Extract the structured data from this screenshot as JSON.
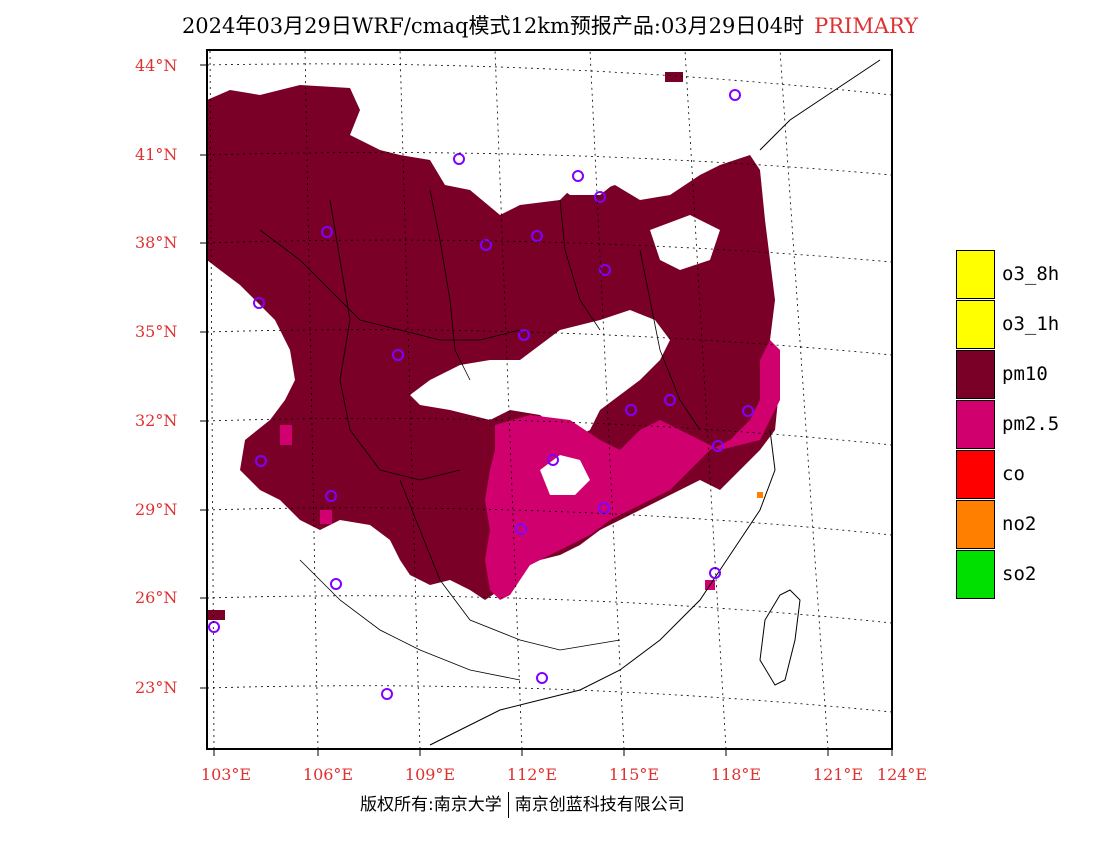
{
  "title": {
    "main": "2024年03月29日WRF/cmaq模式12km预报产品:03月29日04时",
    "tag": "PRIMARY",
    "tag_color": "#e03030"
  },
  "axes": {
    "lat_labels": [
      "44°N",
      "41°N",
      "38°N",
      "35°N",
      "32°N",
      "29°N",
      "26°N",
      "23°N"
    ],
    "lon_labels": [
      "103°E",
      "106°E",
      "109°E",
      "112°E",
      "115°E",
      "118°E",
      "121°E",
      "124°E"
    ],
    "label_color": "#e03030"
  },
  "legend": [
    {
      "label": "o3_8h",
      "color": "#ffff00"
    },
    {
      "label": "o3_1h",
      "color": "#ffff00"
    },
    {
      "label": "pm10",
      "color": "#7a0028"
    },
    {
      "label": "pm2.5",
      "color": "#d0006f"
    },
    {
      "label": "co",
      "color": "#ff0000"
    },
    {
      "label": "no2",
      "color": "#ff8000"
    },
    {
      "label": "so2",
      "color": "#00e000"
    }
  ],
  "copyright": {
    "left": "版权所有:南京大学",
    "right": "南京创蓝科技有限公司"
  },
  "station_color": "#8000ff"
}
